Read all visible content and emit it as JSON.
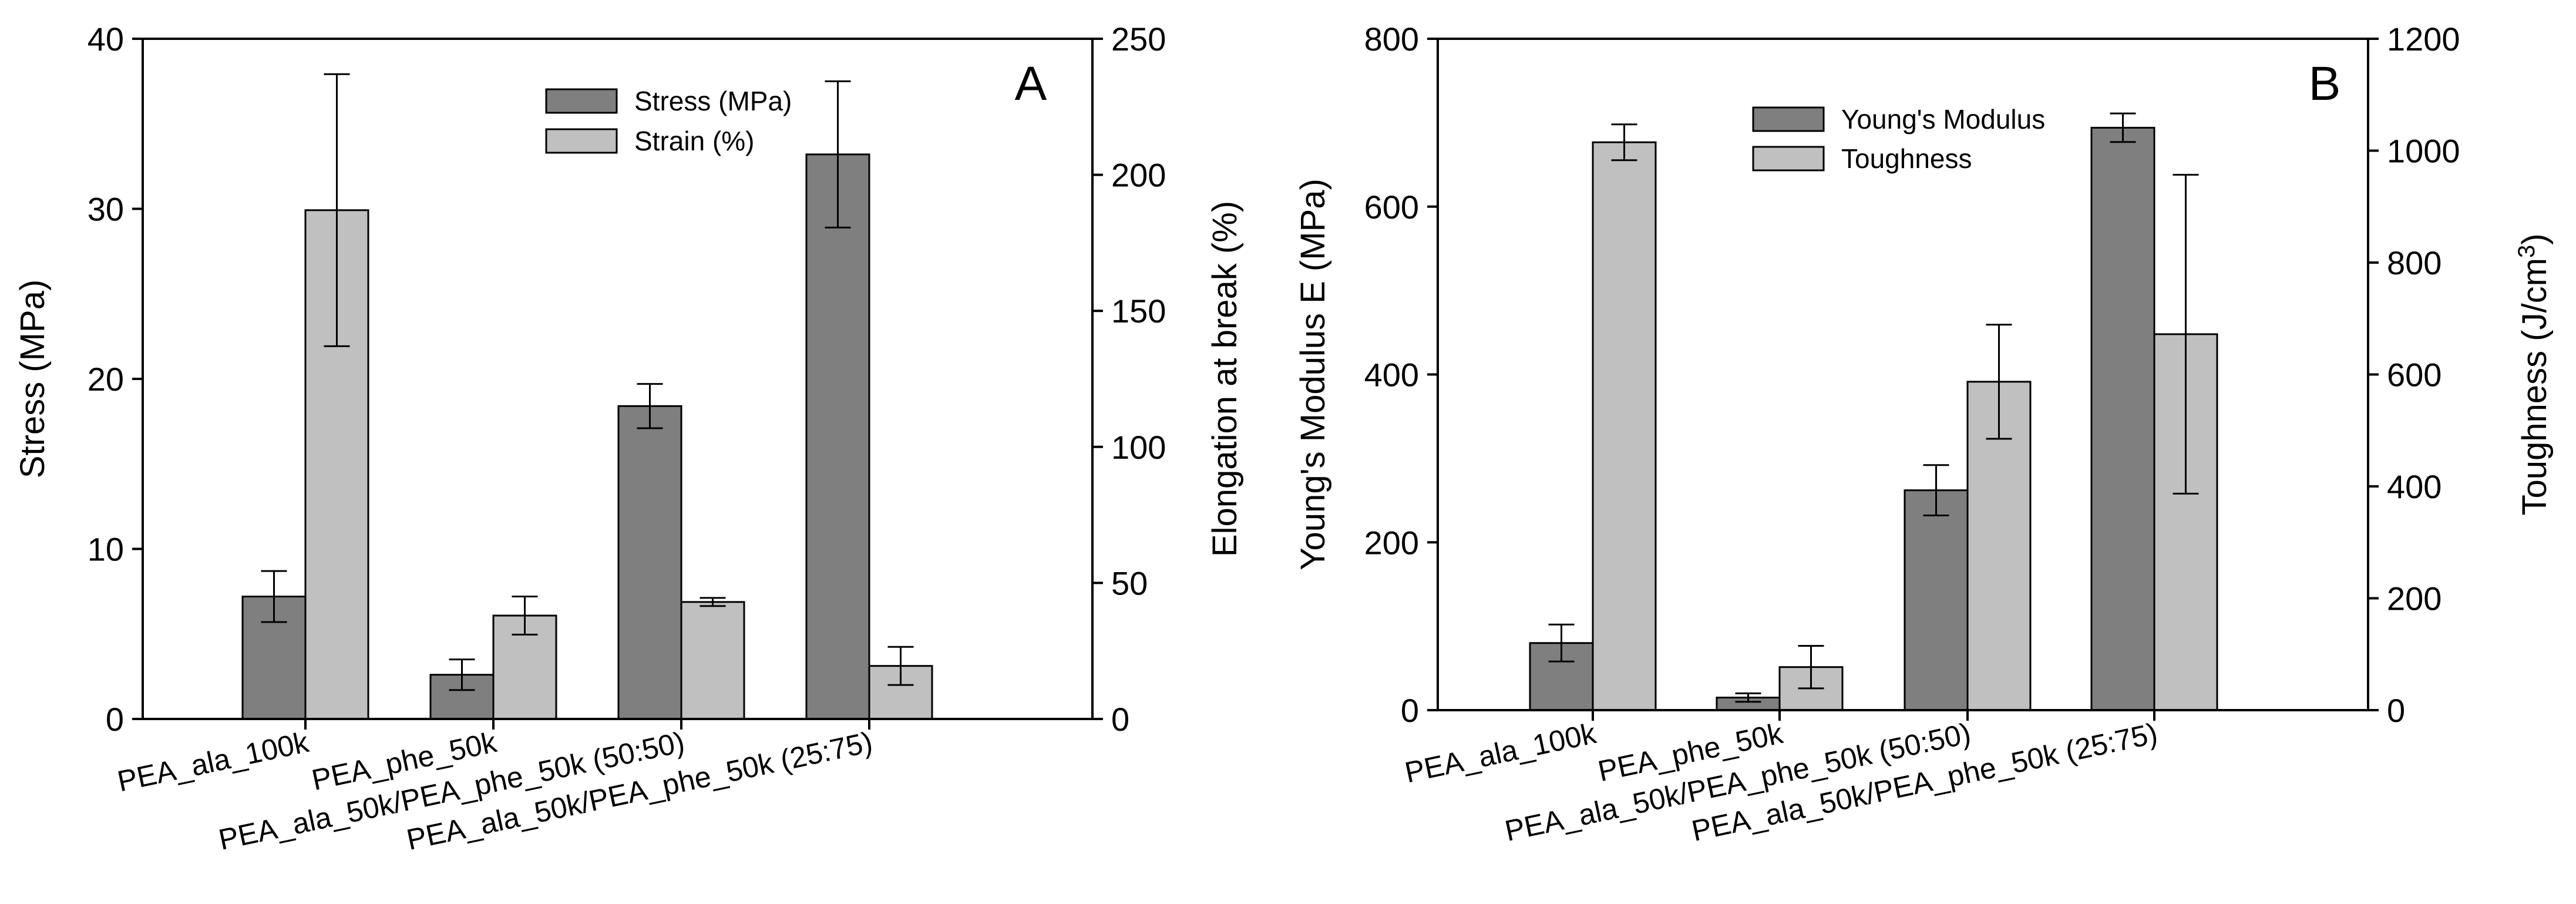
{
  "colors": {
    "dark_bar": "#7f7f7f",
    "light_bar": "#c0c0c0"
  },
  "chart_data": [
    {
      "type": "bar",
      "panel": "A",
      "categories": [
        "PEA_ala_100k",
        "PEA_phe_50k",
        "PEA_ala_50k/PEA_phe_50k (50:50)",
        "PEA_ala_50k/PEA_phe_50k (25:75)"
      ],
      "series": [
        {
          "name": "Stress (MPa)",
          "axis": "left",
          "values": [
            7.2,
            2.6,
            18.4,
            33.2
          ],
          "errors": [
            1.5,
            0.9,
            1.3,
            4.3
          ]
        },
        {
          "name": "Strain (%)",
          "axis": "right",
          "values": [
            187,
            38,
            43,
            19.5
          ],
          "errors": [
            50,
            7,
            1.5,
            7
          ]
        }
      ],
      "ylabel": "Stress (MPa)",
      "ylim": [
        0,
        40
      ],
      "yticks": [
        "0",
        "10",
        "20",
        "30",
        "40"
      ],
      "y2label": "Elongation at break (%)",
      "y2lim": [
        0,
        250
      ],
      "y2ticks": [
        "0",
        "50",
        "100",
        "150",
        "200",
        "250"
      ],
      "legend": "top-center"
    },
    {
      "type": "bar",
      "panel": "B",
      "categories": [
        "PEA_ala_100k",
        "PEA_phe_50k",
        "PEA_ala_50k/PEA_phe_50k (50:50)",
        "PEA_ala_50k/PEA_phe_50k (25:75)"
      ],
      "series": [
        {
          "name": "Young's Modulus",
          "axis": "left",
          "values": [
            80,
            15,
            262,
            694
          ],
          "errors": [
            22,
            5,
            30,
            17
          ]
        },
        {
          "name": "Toughness",
          "axis": "right",
          "values": [
            1015,
            77,
            587,
            672
          ],
          "errors": [
            32,
            38,
            102,
            285
          ]
        }
      ],
      "ylabel": "Young's Modulus E (MPa)",
      "ylim": [
        0,
        800
      ],
      "yticks": [
        "0",
        "200",
        "400",
        "600",
        "800"
      ],
      "y2label_main": "Toughness (J/cm",
      "y2label_sup": "3",
      "y2label_close": ")",
      "y2lim": [
        0,
        1200
      ],
      "y2ticks": [
        "0",
        "200",
        "400",
        "600",
        "800",
        "1000",
        "1200"
      ],
      "legend": "top-center"
    }
  ]
}
